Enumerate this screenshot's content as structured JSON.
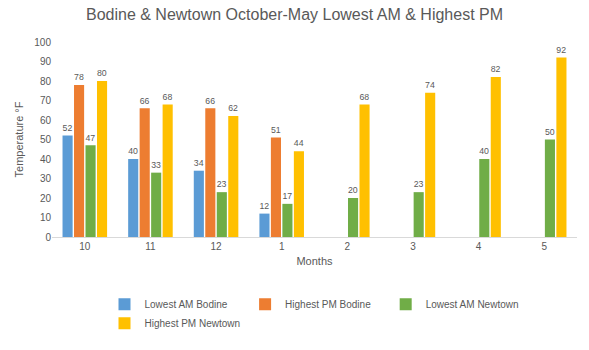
{
  "chart_data": {
    "type": "bar",
    "title": "Bodine & Newtown October-May Lowest AM & Highest PM",
    "x_label": "Months",
    "y_label": "Temperature °F",
    "categories": [
      "10",
      "11",
      "12",
      "1",
      "2",
      "3",
      "4",
      "5"
    ],
    "series": [
      {
        "name": "Lowest AM Bodine",
        "color": "#5b9bd5",
        "values": [
          52,
          40,
          34,
          12,
          null,
          null,
          null,
          null
        ]
      },
      {
        "name": "Highest PM Bodine",
        "color": "#ed7d31",
        "values": [
          78,
          66,
          66,
          51,
          null,
          null,
          null,
          null
        ]
      },
      {
        "name": "Lowest AM Newtown",
        "color": "#70ad47",
        "values": [
          47,
          33,
          23,
          17,
          20,
          23,
          40,
          50
        ]
      },
      {
        "name": "Highest PM Newtown",
        "color": "#ffc000",
        "values": [
          80,
          68,
          62,
          44,
          68,
          74,
          82,
          92
        ]
      }
    ],
    "ylim": [
      0,
      100
    ],
    "yticks": [
      0,
      10,
      20,
      30,
      40,
      50,
      60,
      70,
      80,
      90,
      100
    ],
    "grid": false,
    "legend": "bottom",
    "data_labels": true
  }
}
